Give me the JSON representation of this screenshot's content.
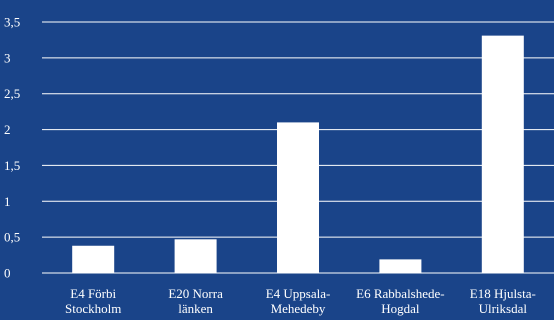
{
  "colors": {
    "background": "#1a4489",
    "bar": "#ffffff",
    "grid": "#ffffff",
    "text": "#ffffff"
  },
  "chart_data": {
    "type": "bar",
    "title": "",
    "xlabel": "",
    "ylabel": "",
    "ylim": [
      0,
      3.5
    ],
    "grid": true,
    "yticks": [
      "0",
      "0,5",
      "1",
      "1,5",
      "2",
      "2,5",
      "3",
      "3,5"
    ],
    "categories": [
      [
        "E4 Förbi",
        "Stockholm"
      ],
      [
        "E20 Norra",
        "länken"
      ],
      [
        "E4 Uppsala-",
        "Mehedeby"
      ],
      [
        "E6 Rabbalshede-",
        "Hogdal"
      ],
      [
        "E18 Hjulsta-",
        "Ulriksdal"
      ]
    ],
    "values": [
      0.38,
      0.47,
      2.1,
      0.19,
      3.31
    ]
  }
}
